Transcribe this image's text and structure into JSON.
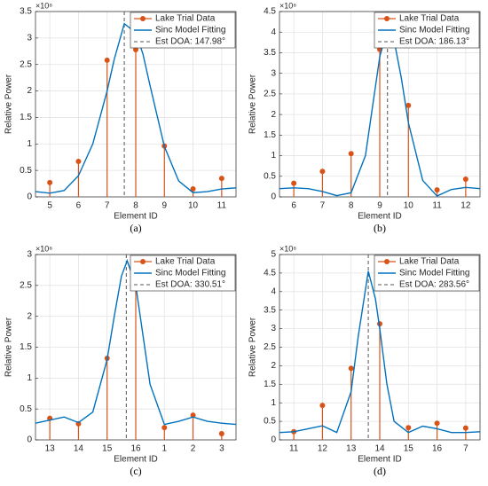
{
  "chart_data": [
    {
      "type": "stem",
      "caption": "(a)",
      "xlabel": "Element ID",
      "ylabel": "Relative Power",
      "exponent": "×10⁸",
      "xlim": [
        4.5,
        11.5
      ],
      "xticks": [
        5,
        6,
        7,
        8,
        9,
        10,
        11
      ],
      "ylim": [
        0,
        3.5
      ],
      "yticks": [
        0,
        0.5,
        1,
        1.5,
        2,
        2.5,
        3,
        3.5
      ],
      "grid": true,
      "series": [
        {
          "name": "Lake Trial Data",
          "type": "stem",
          "color": "#d95319",
          "x": [
            5,
            6,
            7,
            8,
            9,
            10,
            11
          ],
          "values": [
            0.27,
            0.67,
            2.58,
            2.78,
            0.96,
            0.15,
            0.35
          ]
        },
        {
          "name": "Sinc Model Fitting",
          "type": "line",
          "color": "#0072bd",
          "x": [
            4.5,
            5,
            5.5,
            6,
            6.5,
            7,
            7.25,
            7.6,
            8,
            8.25,
            8.5,
            9,
            9.5,
            10,
            10.5,
            11,
            11.5
          ],
          "values": [
            0.1,
            0.07,
            0.12,
            0.4,
            1.0,
            2.0,
            2.6,
            3.27,
            3.1,
            2.7,
            2.1,
            0.95,
            0.3,
            0.08,
            0.1,
            0.15,
            0.17
          ]
        }
      ],
      "annotation": {
        "label": "Est DOA: 147.98°",
        "x": 7.6
      }
    },
    {
      "type": "stem",
      "caption": "(b)",
      "xlabel": "Element ID",
      "ylabel": "Relative Power",
      "exponent": "×10⁸",
      "xlim": [
        5.5,
        12.5
      ],
      "xticks": [
        6,
        7,
        8,
        9,
        10,
        11,
        12
      ],
      "ylim": [
        0,
        4.5
      ],
      "yticks": [
        0,
        0.5,
        1,
        1.5,
        2,
        2.5,
        3,
        3.5,
        4,
        4.5
      ],
      "grid": true,
      "series": [
        {
          "name": "Lake Trial Data",
          "type": "stem",
          "color": "#d95319",
          "x": [
            6,
            7,
            8,
            9,
            10,
            11,
            12
          ],
          "values": [
            0.33,
            0.62,
            1.05,
            3.58,
            2.22,
            0.17,
            0.43
          ]
        },
        {
          "name": "Sinc Model Fitting",
          "type": "line",
          "color": "#0072bd",
          "x": [
            5.5,
            6,
            6.5,
            7,
            7.5,
            8,
            8.5,
            8.75,
            9,
            9.27,
            9.5,
            9.75,
            10,
            10.5,
            11,
            11.5,
            12,
            12.5
          ],
          "values": [
            0.2,
            0.22,
            0.2,
            0.13,
            0.03,
            0.1,
            1.0,
            2.2,
            3.4,
            4.1,
            3.8,
            2.9,
            1.8,
            0.4,
            0.02,
            0.18,
            0.23,
            0.2
          ]
        }
      ],
      "annotation": {
        "label": "Est DOA: 186.13°",
        "x": 9.27
      }
    },
    {
      "type": "stem",
      "caption": "(c)",
      "xlabel": "Element ID",
      "ylabel": "Relative Power",
      "exponent": "×10⁸",
      "xlim": [
        0.5,
        7.5
      ],
      "xticks": [
        {
          "value": 1,
          "label": "13"
        },
        {
          "value": 2,
          "label": "14"
        },
        {
          "value": 3,
          "label": "15"
        },
        {
          "value": 4,
          "label": "16"
        },
        {
          "value": 5,
          "label": "1"
        },
        {
          "value": 6,
          "label": "2"
        },
        {
          "value": 7,
          "label": "3"
        }
      ],
      "ylim": [
        0,
        3
      ],
      "yticks": [
        0,
        0.5,
        1,
        1.5,
        2,
        2.5,
        3
      ],
      "grid": true,
      "series": [
        {
          "name": "Lake Trial Data",
          "type": "stem",
          "color": "#d95319",
          "x": [
            1,
            2,
            3,
            4,
            5,
            6,
            7
          ],
          "values": [
            0.35,
            0.26,
            1.32,
            2.49,
            0.2,
            0.4,
            0.1
          ]
        },
        {
          "name": "Sinc Model Fitting",
          "type": "line",
          "color": "#0072bd",
          "x": [
            0.5,
            1,
            1.5,
            2,
            2.5,
            3,
            3.25,
            3.5,
            3.7,
            4,
            4.25,
            4.5,
            5,
            5.5,
            6,
            6.5,
            7,
            7.5
          ],
          "values": [
            0.27,
            0.32,
            0.37,
            0.28,
            0.45,
            1.3,
            2.0,
            2.65,
            2.9,
            2.5,
            1.7,
            0.9,
            0.25,
            0.3,
            0.37,
            0.3,
            0.27,
            0.25
          ]
        }
      ],
      "annotation": {
        "label": "Est DOA: 330.51°",
        "x": 3.67
      }
    },
    {
      "type": "stem",
      "caption": "(d)",
      "xlabel": "Element ID",
      "ylabel": "Relative Power",
      "exponent": "×10⁸",
      "xlim": [
        0.5,
        7.5
      ],
      "xticks": [
        {
          "value": 1,
          "label": "11"
        },
        {
          "value": 2,
          "label": "12"
        },
        {
          "value": 3,
          "label": "13"
        },
        {
          "value": 4,
          "label": "14"
        },
        {
          "value": 5,
          "label": "15"
        },
        {
          "value": 6,
          "label": "16"
        },
        7
      ],
      "ylim": [
        0,
        5
      ],
      "yticks": [
        0,
        0.5,
        1,
        1.5,
        2,
        2.5,
        3,
        3.5,
        4,
        4.5,
        5
      ],
      "grid": true,
      "series": [
        {
          "name": "Lake Trial Data",
          "type": "stem",
          "color": "#d95319",
          "x": [
            1,
            2,
            3,
            4,
            5,
            6,
            7
          ],
          "values": [
            0.22,
            0.93,
            1.93,
            3.13,
            0.33,
            0.45,
            0.32
          ]
        },
        {
          "name": "Sinc Model Fitting",
          "type": "line",
          "color": "#0072bd",
          "x": [
            0.5,
            1,
            1.5,
            2,
            2.5,
            3,
            3.25,
            3.6,
            3.85,
            4,
            4.25,
            4.5,
            5,
            5.5,
            6,
            6.5,
            7,
            7.5
          ],
          "values": [
            0.2,
            0.22,
            0.3,
            0.38,
            0.2,
            1.3,
            2.8,
            4.55,
            3.8,
            3.0,
            1.5,
            0.5,
            0.2,
            0.37,
            0.3,
            0.2,
            0.2,
            0.22
          ]
        }
      ],
      "annotation": {
        "label": "Est DOA: 283.56°",
        "x": 3.6
      }
    }
  ]
}
